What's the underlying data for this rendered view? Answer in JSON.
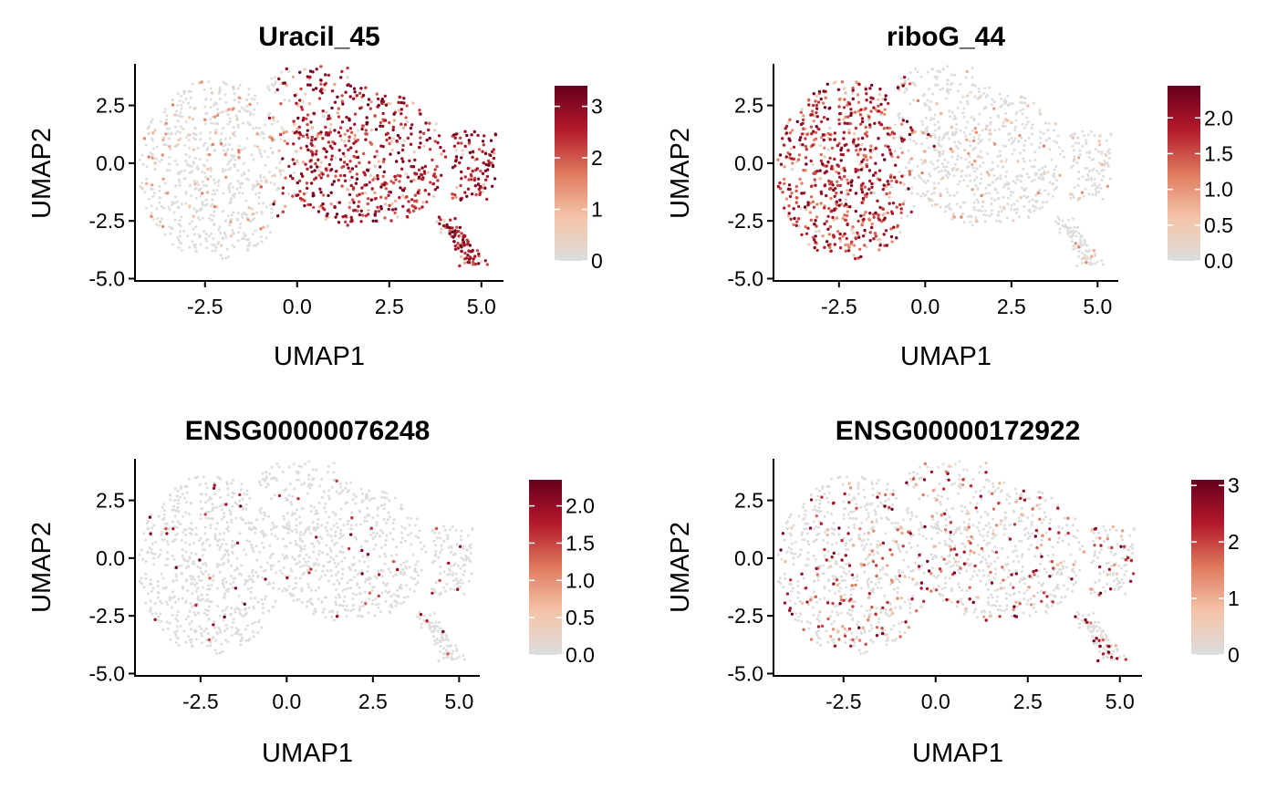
{
  "chart_data": [
    {
      "type": "scatter",
      "title": "Uracil_45",
      "xlabel": "UMAP1",
      "ylabel": "UMAP2",
      "xlim": [
        -4.4,
        5.6
      ],
      "ylim": [
        -5.1,
        4.3
      ],
      "xticks": [
        "-2.5",
        "0.0",
        "2.5",
        "5.0"
      ],
      "xtick_values": [
        -2.5,
        0.0,
        2.5,
        5.0
      ],
      "yticks": [
        "-5.0",
        "-2.5",
        "0.0",
        "2.5"
      ],
      "ytick_values": [
        -5.0,
        -2.5,
        0.0,
        2.5
      ],
      "colorbar": {
        "min": 0,
        "max": 3.4,
        "ticks": [
          "0",
          "1",
          "2",
          "3"
        ],
        "tick_values": [
          0,
          1,
          2,
          3
        ]
      },
      "expression_pattern": "high in right lobe (UMAP1 > 0), low in left lobe",
      "high_region": "right",
      "point_count": 1500
    },
    {
      "type": "scatter",
      "title": "riboG_44",
      "xlabel": "UMAP1",
      "ylabel": "UMAP2",
      "xlim": [
        -4.4,
        5.6
      ],
      "ylim": [
        -5.1,
        4.3
      ],
      "xticks": [
        "-2.5",
        "0.0",
        "2.5",
        "5.0"
      ],
      "xtick_values": [
        -2.5,
        0.0,
        2.5,
        5.0
      ],
      "yticks": [
        "-5.0",
        "-2.5",
        "0.0",
        "2.5"
      ],
      "ytick_values": [
        -5.0,
        -2.5,
        0.0,
        2.5
      ],
      "colorbar": {
        "min": 0,
        "max": 2.45,
        "ticks": [
          "0.0",
          "0.5",
          "1.0",
          "1.5",
          "2.0"
        ],
        "tick_values": [
          0.0,
          0.5,
          1.0,
          1.5,
          2.0
        ]
      },
      "expression_pattern": "high in left lobe (UMAP1 < 0), low in right lobe",
      "high_region": "left",
      "point_count": 1500
    },
    {
      "type": "scatter",
      "title": "ENSG00000076248",
      "xlabel": "UMAP1",
      "ylabel": "UMAP2",
      "xlim": [
        -4.4,
        5.6
      ],
      "ylim": [
        -5.1,
        4.3
      ],
      "xticks": [
        "-2.5",
        "0.0",
        "2.5",
        "5.0"
      ],
      "xtick_values": [
        -2.5,
        0.0,
        2.5,
        5.0
      ],
      "yticks": [
        "-5.0",
        "-2.5",
        "0.0",
        "2.5"
      ],
      "ytick_values": [
        -5.0,
        -2.5,
        0.0,
        2.5
      ],
      "colorbar": {
        "min": 0,
        "max": 2.35,
        "ticks": [
          "0.0",
          "0.5",
          "1.0",
          "1.5",
          "2.0"
        ],
        "tick_values": [
          0.0,
          0.5,
          1.0,
          1.5,
          2.0
        ]
      },
      "expression_pattern": "sparse, few expressing cells",
      "high_region": "sparse",
      "point_count": 1500
    },
    {
      "type": "scatter",
      "title": "ENSG00000172922",
      "xlabel": "UMAP1",
      "ylabel": "UMAP2",
      "xlim": [
        -4.4,
        5.6
      ],
      "ylim": [
        -5.1,
        4.3
      ],
      "xticks": [
        "-2.5",
        "0.0",
        "2.5",
        "5.0"
      ],
      "xtick_values": [
        -2.5,
        0.0,
        2.5,
        5.0
      ],
      "yticks": [
        "-5.0",
        "-2.5",
        "0.0",
        "2.5"
      ],
      "ytick_values": [
        -5.0,
        -2.5,
        0.0,
        2.5
      ],
      "colorbar": {
        "min": 0,
        "max": 3.1,
        "ticks": [
          "0",
          "1",
          "2",
          "3"
        ],
        "tick_values": [
          0,
          1,
          2,
          3
        ]
      },
      "expression_pattern": "moderate, scattered across both lobes",
      "high_region": "scattered",
      "point_count": 1500
    }
  ],
  "colors": {
    "low": "#dddddd",
    "mid_low": "#f4c4a8",
    "mid": "#e07a5f",
    "mid_high": "#b3182b",
    "high": "#67001f"
  }
}
